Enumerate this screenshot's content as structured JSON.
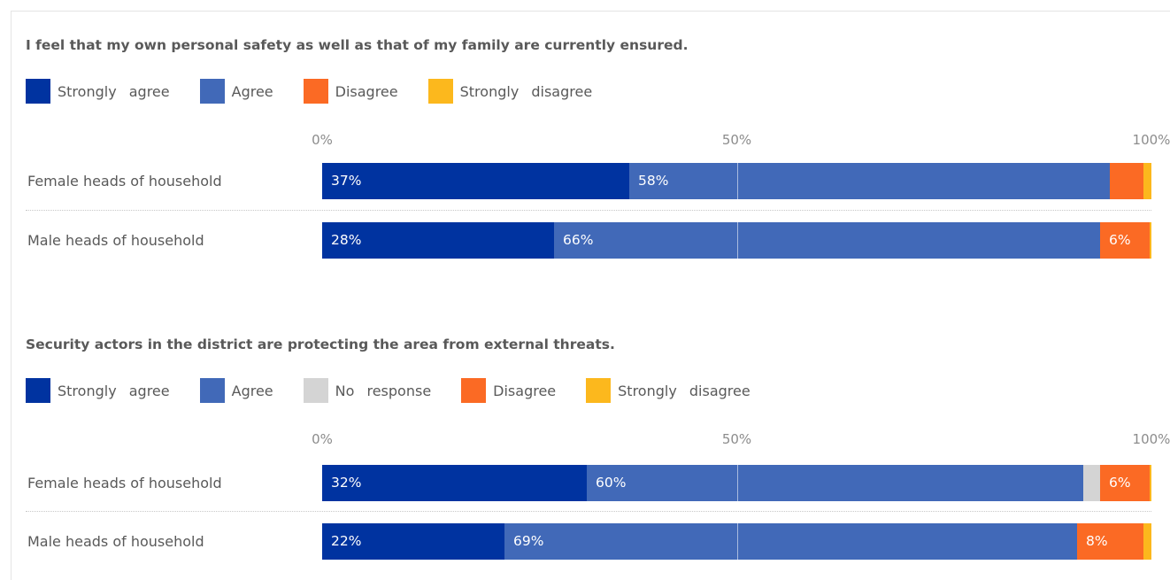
{
  "colors": {
    "strongly_agree": "#0033a0",
    "agree": "#4169b8",
    "no_response": "#d4d4d4",
    "disagree": "#fb6a24",
    "strongly_disagree": "#fcb81d"
  },
  "chart_data": [
    {
      "type": "bar",
      "orientation": "horizontal-stacked-100",
      "title": "I feel that my own personal safety as well as that of my family are currently ensured.",
      "xlim": [
        0,
        100
      ],
      "ticks": [
        "0%",
        "50%",
        "100%"
      ],
      "legend_position": "top-left",
      "categories": [
        "Female heads of household",
        "Male heads of household"
      ],
      "series": [
        {
          "name": "Strongly  agree",
          "key": "strongly_agree",
          "values": [
            37,
            28
          ],
          "labels": [
            "37%",
            "28%"
          ]
        },
        {
          "name": "Agree",
          "key": "agree",
          "values": [
            58,
            66
          ],
          "labels": [
            "58%",
            "66%"
          ]
        },
        {
          "name": "Disagree",
          "key": "disagree",
          "values": [
            4,
            6
          ],
          "labels": [
            "",
            "6%"
          ]
        },
        {
          "name": "Strongly  disagree",
          "key": "strongly_disagree",
          "values": [
            1,
            0.2
          ],
          "labels": [
            "",
            ""
          ]
        }
      ]
    },
    {
      "type": "bar",
      "orientation": "horizontal-stacked-100",
      "title": "Security actors in the district are protecting the area from external threats.",
      "xlim": [
        0,
        100
      ],
      "ticks": [
        "0%",
        "50%",
        "100%"
      ],
      "legend_position": "top-left",
      "categories": [
        "Female heads of household",
        "Male heads of household"
      ],
      "series": [
        {
          "name": "Strongly  agree",
          "key": "strongly_agree",
          "values": [
            32,
            22
          ],
          "labels": [
            "32%",
            "22%"
          ]
        },
        {
          "name": "Agree",
          "key": "agree",
          "values": [
            60,
            69
          ],
          "labels": [
            "60%",
            "69%"
          ]
        },
        {
          "name": "No response",
          "key": "no_response",
          "values": [
            2,
            0
          ],
          "labels": [
            "",
            ""
          ]
        },
        {
          "name": "Disagree",
          "key": "disagree",
          "values": [
            6,
            8
          ],
          "labels": [
            "6%",
            "8%"
          ]
        },
        {
          "name": "Strongly  disagree",
          "key": "strongly_disagree",
          "values": [
            0.2,
            1
          ],
          "labels": [
            "",
            ""
          ]
        }
      ]
    }
  ]
}
